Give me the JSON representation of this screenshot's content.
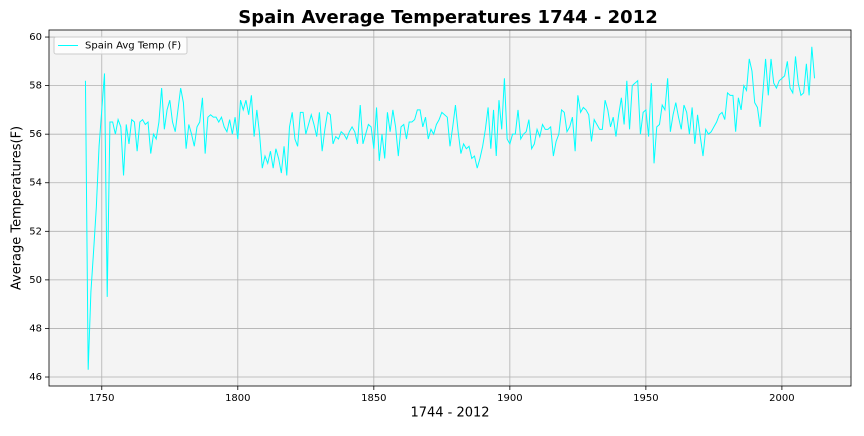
{
  "chart_data": {
    "type": "line",
    "title": "Spain Average Temperatures 1744 - 2012",
    "xlabel": "1744 - 2012",
    "ylabel": "Average Temperatures(F)",
    "grid": true,
    "legend": "upper left",
    "xlim": [
      1730.6,
      2025.4
    ],
    "ylim": [
      45.63,
      60.29
    ],
    "xticks": [
      1750,
      1800,
      1850,
      1900,
      1950,
      2000
    ],
    "yticks": [
      46,
      48,
      50,
      52,
      54,
      56,
      58,
      60
    ],
    "x": [
      1744,
      1745,
      1746,
      1747,
      1748,
      1749,
      1750,
      1751,
      1752,
      1753,
      1754,
      1755,
      1756,
      1757,
      1758,
      1759,
      1760,
      1761,
      1762,
      1763,
      1764,
      1765,
      1766,
      1767,
      1768,
      1769,
      1770,
      1771,
      1772,
      1773,
      1774,
      1775,
      1776,
      1777,
      1778,
      1779,
      1780,
      1781,
      1782,
      1783,
      1784,
      1785,
      1786,
      1787,
      1788,
      1789,
      1790,
      1791,
      1792,
      1793,
      1794,
      1795,
      1796,
      1797,
      1798,
      1799,
      1800,
      1801,
      1802,
      1803,
      1804,
      1805,
      1806,
      1807,
      1808,
      1809,
      1810,
      1811,
      1812,
      1813,
      1814,
      1815,
      1816,
      1817,
      1818,
      1819,
      1820,
      1821,
      1822,
      1823,
      1824,
      1825,
      1826,
      1827,
      1828,
      1829,
      1830,
      1831,
      1832,
      1833,
      1834,
      1835,
      1836,
      1837,
      1838,
      1839,
      1840,
      1841,
      1842,
      1843,
      1844,
      1845,
      1846,
      1847,
      1848,
      1849,
      1850,
      1851,
      1852,
      1853,
      1854,
      1855,
      1856,
      1857,
      1858,
      1859,
      1860,
      1861,
      1862,
      1863,
      1864,
      1865,
      1866,
      1867,
      1868,
      1869,
      1870,
      1871,
      1872,
      1873,
      1874,
      1875,
      1876,
      1877,
      1878,
      1879,
      1880,
      1881,
      1882,
      1883,
      1884,
      1885,
      1886,
      1887,
      1888,
      1889,
      1890,
      1891,
      1892,
      1893,
      1894,
      1895,
      1896,
      1897,
      1898,
      1899,
      1900,
      1901,
      1902,
      1903,
      1904,
      1905,
      1906,
      1907,
      1908,
      1909,
      1910,
      1911,
      1912,
      1913,
      1914,
      1915,
      1916,
      1917,
      1918,
      1919,
      1920,
      1921,
      1922,
      1923,
      1924,
      1925,
      1926,
      1927,
      1928,
      1929,
      1930,
      1931,
      1932,
      1933,
      1934,
      1935,
      1936,
      1937,
      1938,
      1939,
      1940,
      1941,
      1942,
      1943,
      1944,
      1945,
      1946,
      1947,
      1948,
      1949,
      1950,
      1951,
      1952,
      1953,
      1954,
      1955,
      1956,
      1957,
      1958,
      1959,
      1960,
      1961,
      1962,
      1963,
      1964,
      1965,
      1966,
      1967,
      1968,
      1969,
      1970,
      1971,
      1972,
      1973,
      1974,
      1975,
      1976,
      1977,
      1978,
      1979,
      1980,
      1981,
      1982,
      1983,
      1984,
      1985,
      1986,
      1987,
      1988,
      1989,
      1990,
      1991,
      1992,
      1993,
      1994,
      1995,
      1996,
      1997,
      1998,
      1999,
      2000,
      2001,
      2002,
      2003,
      2004,
      2005,
      2006,
      2007,
      2008,
      2009,
      2010,
      2011,
      2012
    ],
    "series": [
      {
        "name": "Spain Avg Temp (F)",
        "color": "#00ffff",
        "values": [
          58.2,
          46.3,
          49.5,
          51.2,
          53.0,
          55.5,
          57.0,
          58.5,
          49.3,
          56.5,
          56.5,
          56.0,
          56.6,
          56.3,
          54.3,
          56.4,
          55.6,
          56.6,
          56.5,
          55.3,
          56.5,
          56.6,
          56.4,
          56.5,
          55.2,
          56.0,
          55.8,
          56.5,
          57.9,
          56.2,
          57.0,
          57.4,
          56.5,
          56.1,
          57.0,
          57.9,
          57.3,
          55.4,
          56.4,
          56.0,
          55.5,
          56.3,
          56.5,
          57.5,
          55.2,
          56.7,
          56.8,
          56.7,
          56.7,
          56.5,
          56.7,
          56.3,
          56.1,
          56.6,
          56.0,
          56.7,
          55.8,
          57.4,
          57.0,
          57.4,
          56.8,
          57.6,
          55.9,
          57.0,
          56.0,
          54.6,
          55.1,
          54.8,
          55.3,
          54.6,
          55.4,
          55.0,
          54.4,
          55.5,
          54.3,
          56.3,
          56.9,
          55.8,
          55.5,
          56.9,
          56.9,
          56.0,
          56.4,
          56.8,
          56.4,
          55.9,
          56.9,
          55.3,
          56.2,
          56.9,
          56.8,
          55.6,
          55.9,
          55.8,
          56.1,
          56.0,
          55.8,
          56.1,
          56.3,
          56.1,
          55.6,
          57.2,
          55.6,
          56.0,
          56.4,
          56.3,
          55.4,
          57.1,
          54.9,
          56.0,
          55.0,
          56.9,
          56.1,
          57.0,
          56.3,
          55.1,
          56.3,
          56.4,
          55.8,
          56.5,
          56.5,
          56.6,
          57.0,
          57.0,
          56.3,
          56.7,
          55.8,
          56.2,
          56.0,
          56.4,
          56.6,
          56.9,
          56.8,
          56.7,
          55.5,
          56.3,
          57.2,
          56.1,
          55.2,
          55.6,
          55.4,
          55.5,
          55.0,
          55.1,
          54.6,
          55.0,
          55.5,
          56.2,
          57.1,
          55.4,
          57.0,
          55.1,
          57.4,
          56.2,
          58.3,
          55.8,
          55.6,
          56.0,
          56.0,
          57.0,
          55.8,
          56.0,
          56.1,
          56.6,
          55.4,
          55.6,
          56.2,
          55.9,
          56.4,
          56.2,
          56.2,
          56.3,
          55.1,
          55.7,
          56.0,
          57.0,
          56.9,
          56.1,
          56.3,
          56.7,
          55.3,
          57.6,
          56.9,
          57.1,
          57.0,
          56.8,
          55.7,
          56.6,
          56.4,
          56.2,
          56.2,
          57.4,
          57.0,
          56.3,
          56.7,
          55.9,
          56.8,
          57.5,
          56.4,
          58.2,
          56.2,
          58.0,
          58.1,
          58.2,
          56.0,
          56.9,
          57.0,
          55.9,
          58.1,
          54.8,
          56.3,
          56.4,
          57.2,
          57.0,
          58.3,
          56.1,
          56.8,
          57.3,
          56.7,
          56.2,
          57.2,
          56.9,
          56.0,
          57.1,
          55.6,
          56.8,
          55.9,
          55.1,
          56.2,
          56.0,
          56.1,
          56.3,
          56.5,
          56.8,
          56.9,
          56.6,
          57.7,
          57.6,
          57.6,
          56.1,
          57.5,
          57.0,
          58.0,
          57.8,
          59.1,
          58.6,
          57.3,
          57.1,
          56.3,
          57.7,
          59.1,
          57.6,
          59.1,
          58.1,
          57.9,
          58.2,
          58.3,
          58.4,
          59.0,
          57.9,
          57.7,
          59.2,
          58.1,
          57.6,
          57.7,
          58.9,
          57.6,
          59.6,
          58.3
        ]
      }
    ]
  }
}
